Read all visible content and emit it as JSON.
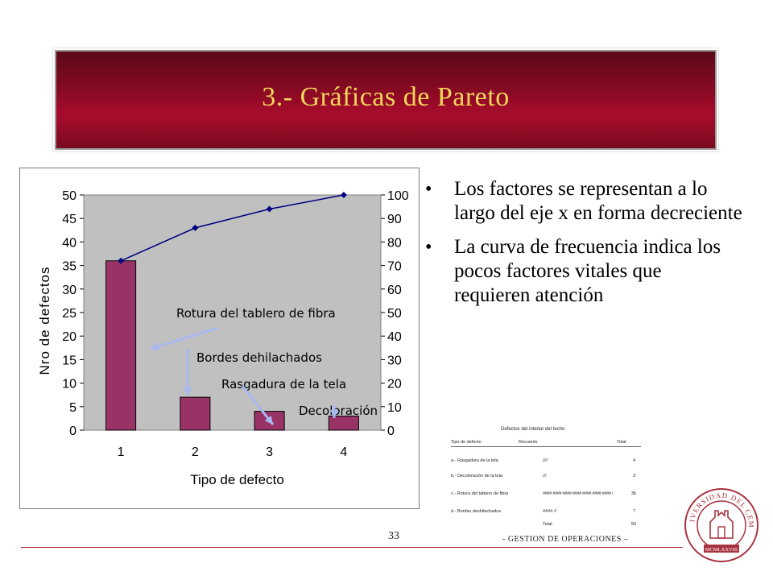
{
  "slide": {
    "title": "3.- Gráficas de Pareto",
    "page_number": "33",
    "footer": "- GESTION DE OPERACIONES –"
  },
  "bullets": [
    "Los factores se representan a lo largo del eje x en forma decreciente",
    "La curva de frecuencia indica los pocos factores vitales que requieren atención"
  ],
  "chart_data": {
    "type": "bar",
    "categories": [
      "1",
      "2",
      "3",
      "4"
    ],
    "values": [
      36,
      7,
      4,
      3
    ],
    "cumulative_percent": [
      72,
      86,
      94,
      100
    ],
    "xlabel": "Tipo de defecto",
    "ylabel": "Nro de defectos",
    "ylim": [
      0,
      50
    ],
    "y_ticks": [
      "0",
      "5",
      "10",
      "15",
      "20",
      "25",
      "30",
      "35",
      "40",
      "45",
      "50"
    ],
    "y2lim": [
      0,
      100
    ],
    "y2_ticks": [
      "0",
      "10",
      "20",
      "30",
      "40",
      "50",
      "60",
      "70",
      "80",
      "90",
      "100"
    ],
    "grid": false,
    "annotations": [
      "Rotura del tablero de fibra",
      "Bordes dehilachados",
      "Rasgadura de la tela",
      "Decoloración"
    ],
    "colors": {
      "bar": "#993366",
      "plot_bg": "#c0c0c0",
      "line": "#000080"
    }
  },
  "tally_sheet": {
    "title": "Defectos del interior del techo",
    "headers": [
      "Tipo de defecto",
      "Recuento",
      "Total"
    ],
    "rows": [
      {
        "type": "a.- Rasgadura de la tela",
        "tally": "////",
        "total": "4"
      },
      {
        "type": "b.- Decoloración de la tela",
        "tally": "///",
        "total": "3"
      },
      {
        "type": "c.- Rotura del tablero de fibra",
        "tally": "#### #### #### #### #### #### #### /",
        "total": "36"
      },
      {
        "type": "d.- Bordes deshilachados",
        "tally": "#### //",
        "total": "7"
      }
    ],
    "total_label": "Total",
    "total_value": "50"
  },
  "seal": {
    "text": "UNIVERSIDAD DEL CEMA",
    "year": "MCMLXXVIII",
    "color": "#a8323e"
  }
}
